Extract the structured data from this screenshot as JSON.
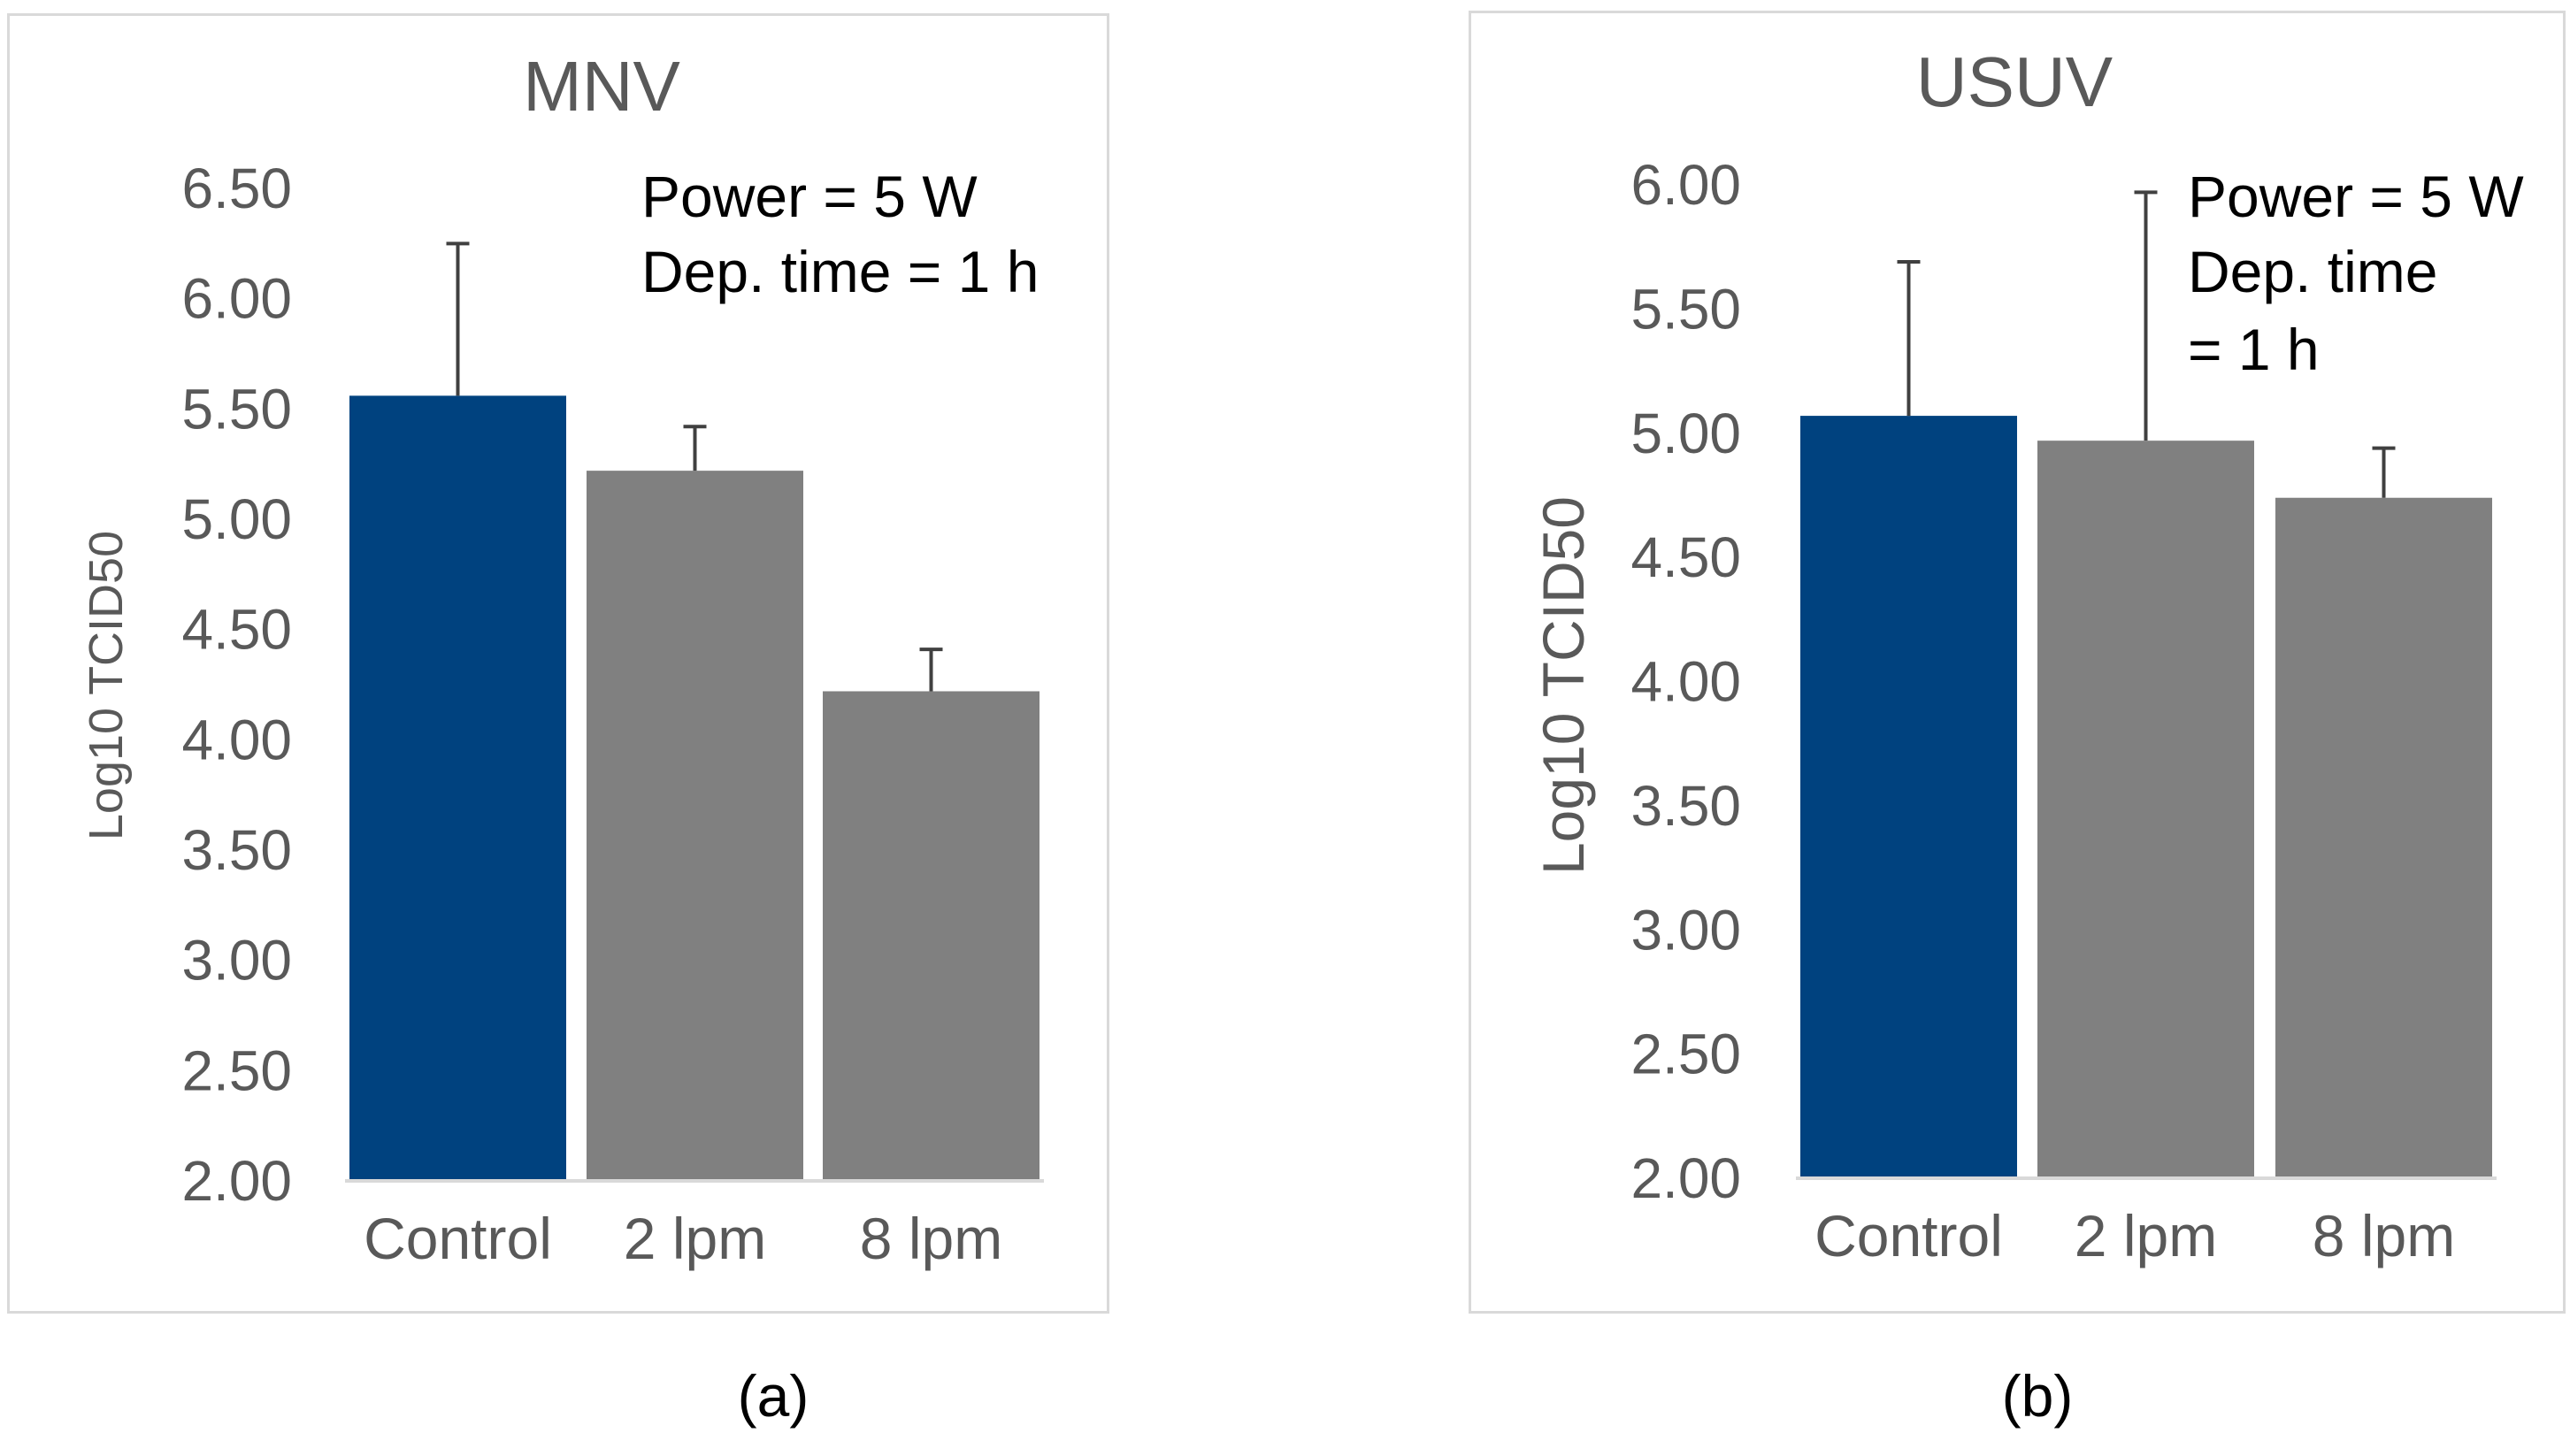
{
  "chart_data": [
    {
      "type": "bar",
      "title": "MNV",
      "xlabel": "",
      "ylabel": "Log10 TCID50",
      "categories": [
        "Control",
        "2 lpm",
        "8 lpm"
      ],
      "values": [
        5.56,
        5.22,
        4.22
      ],
      "error_bars": [
        0.69,
        0.2,
        0.19
      ],
      "bar_colors": [
        "#00427f",
        "#808080",
        "#808080"
      ],
      "ylim": [
        2.0,
        6.5
      ],
      "yticks": [
        "2.00",
        "2.50",
        "3.00",
        "3.50",
        "4.00",
        "4.50",
        "5.00",
        "5.50",
        "6.00",
        "6.50"
      ],
      "grid": false,
      "annotation": [
        "Power = 5 W",
        "Dep. time = 1 h"
      ],
      "caption": "(a)"
    },
    {
      "type": "bar",
      "title": "USUV",
      "xlabel": "",
      "ylabel": "Log10 TCID50",
      "categories": [
        "Control",
        "2 lpm",
        "8 lpm"
      ],
      "values": [
        5.07,
        4.97,
        4.74
      ],
      "error_bars": [
        0.62,
        1.0,
        0.2
      ],
      "bar_colors": [
        "#00427f",
        "#808080",
        "#808080"
      ],
      "ylim": [
        2.0,
        6.0
      ],
      "yticks": [
        "2.00",
        "2.50",
        "3.00",
        "3.50",
        "4.00",
        "4.50",
        "5.00",
        "5.50",
        "6.00"
      ],
      "grid": false,
      "annotation": [
        "Power = 5 W",
        "Dep. time",
        "= 1 h"
      ],
      "caption": "(b)"
    }
  ]
}
